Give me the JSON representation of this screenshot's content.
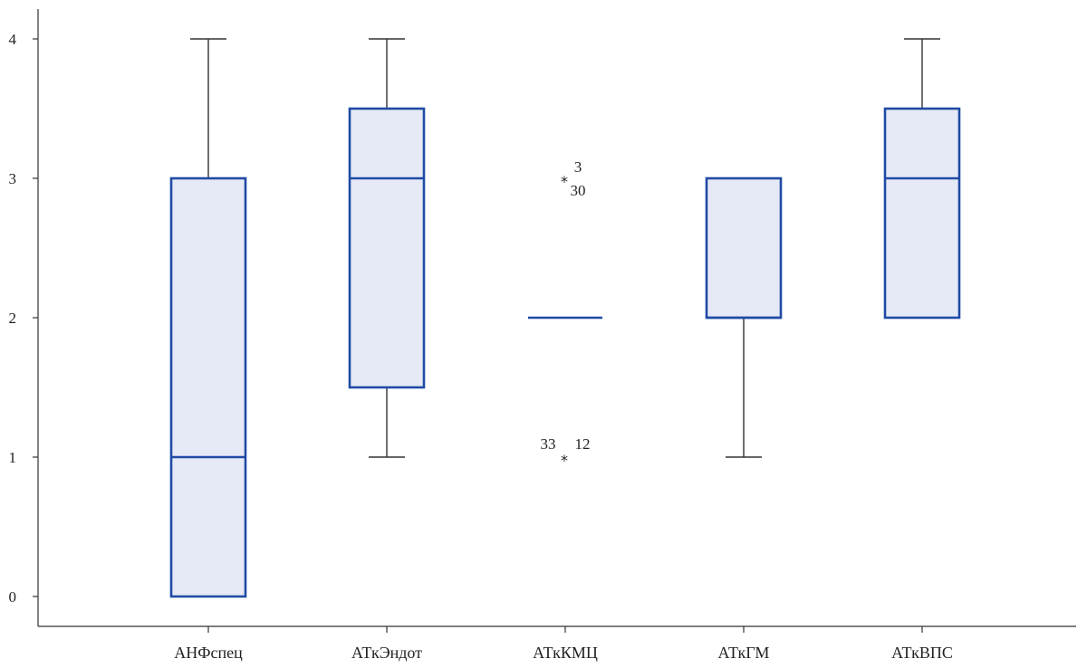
{
  "chart_data": {
    "type": "box",
    "title": "",
    "xlabel": "",
    "ylabel": "",
    "ylim": [
      -0.2,
      4.2
    ],
    "yticks": [
      0,
      1,
      2,
      3,
      4
    ],
    "ytick_labels": [
      "0",
      "1",
      "2",
      "3",
      "4"
    ],
    "grid": false,
    "box_fill": "#e6e9f6",
    "box_stroke": "#1f4ba5",
    "whisker_color": "#333333",
    "categories": [
      "АНФспец",
      "АТкЭндот",
      "АТкКМЦ",
      "АТкГМ",
      "АТкВПС"
    ],
    "boxes": [
      {
        "min": 0,
        "q1": 0,
        "median": 1,
        "q3": 3,
        "max": 4,
        "outliers": []
      },
      {
        "min": 1,
        "q1": 1.5,
        "median": 3,
        "q3": 3.5,
        "max": 4,
        "outliers": []
      },
      {
        "min": 2,
        "q1": 2,
        "median": 2,
        "q3": 2,
        "max": 2,
        "outliers": [
          {
            "value": 3,
            "labels": [
              "3",
              "30"
            ]
          },
          {
            "value": 1,
            "labels": [
              "33",
              "12"
            ]
          }
        ]
      },
      {
        "min": 1,
        "q1": 2,
        "median": 2,
        "q3": 3,
        "max": 3,
        "outliers": []
      },
      {
        "min": 2,
        "q1": 2,
        "median": 3,
        "q3": 3.5,
        "max": 4,
        "outliers": []
      }
    ]
  }
}
